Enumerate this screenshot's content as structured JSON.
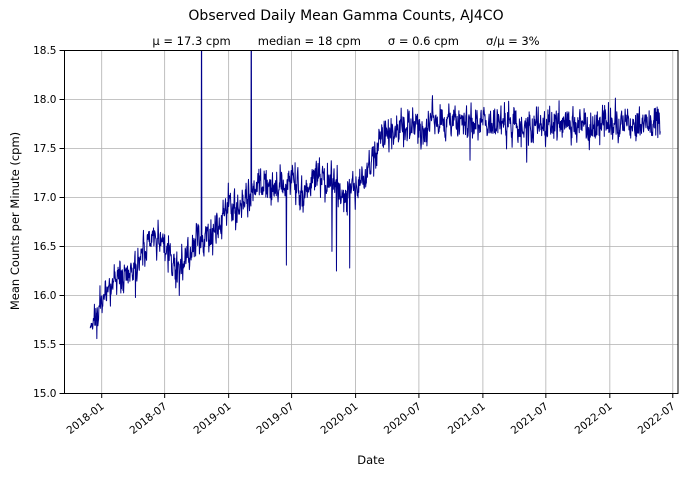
{
  "chart_data": {
    "type": "line",
    "title": "Observed Daily Mean Gamma Counts, AJ4CO",
    "stats": {
      "mu": "μ = 17.3 cpm",
      "median": "median = 18 cpm",
      "sigma": "σ = 0.6 cpm",
      "sigma_over_mu": "σ/μ = 3%"
    },
    "stats_values": {
      "mu_cpm": 17.3,
      "median_cpm": 18,
      "sigma_cpm": 0.6,
      "sigma_over_mu_pct": 3
    },
    "xlabel": "Date",
    "ylabel": "Mean Counts per Minute (cpm)",
    "xlim": [
      "2017-09-16",
      "2022-07-16"
    ],
    "ylim": [
      15.0,
      18.5
    ],
    "xticks": [
      "2018-01",
      "2018-07",
      "2019-01",
      "2019-07",
      "2020-01",
      "2020-07",
      "2021-01",
      "2021-07",
      "2022-01",
      "2022-07"
    ],
    "yticks": [
      15.0,
      15.5,
      16.0,
      16.5,
      17.0,
      17.5,
      18.0,
      18.5
    ],
    "yticklabels": [
      "15.0",
      "15.5",
      "16.0",
      "16.5",
      "17.0",
      "17.5",
      "18.0",
      "18.5"
    ],
    "grid": true,
    "legend": "none",
    "line_color": "#00008b",
    "grid_color": "#b0b0b0",
    "spine_color": "#000000",
    "series": [
      {
        "name": "observed daily mean gamma counts",
        "cadence": "daily",
        "start": "2017-11-29",
        "end": "2022-05-26",
        "noise_sd": 0.095,
        "trend": [
          [
            "2017-11-29",
            15.78
          ],
          [
            "2017-12-20",
            15.8
          ],
          [
            "2018-01-15",
            16.02
          ],
          [
            "2018-02-10",
            16.15
          ],
          [
            "2018-03-10",
            16.2
          ],
          [
            "2018-04-05",
            16.3
          ],
          [
            "2018-05-01",
            16.45
          ],
          [
            "2018-05-25",
            16.55
          ],
          [
            "2018-06-20",
            16.55
          ],
          [
            "2018-07-05",
            16.5
          ],
          [
            "2018-07-25",
            16.32
          ],
          [
            "2018-08-10",
            16.25
          ],
          [
            "2018-09-01",
            16.4
          ],
          [
            "2018-09-25",
            16.5
          ],
          [
            "2018-10-20",
            16.55
          ],
          [
            "2018-11-15",
            16.62
          ],
          [
            "2018-12-10",
            16.8
          ],
          [
            "2019-01-05",
            16.92
          ],
          [
            "2019-01-25",
            16.86
          ],
          [
            "2019-02-15",
            16.98
          ],
          [
            "2019-03-10",
            17.05
          ],
          [
            "2019-04-01",
            17.12
          ],
          [
            "2019-05-01",
            17.15
          ],
          [
            "2019-06-01",
            17.12
          ],
          [
            "2019-07-01",
            17.2
          ],
          [
            "2019-07-25",
            17.05
          ],
          [
            "2019-08-10",
            17.02
          ],
          [
            "2019-09-01",
            17.18
          ],
          [
            "2019-10-01",
            17.2
          ],
          [
            "2019-11-01",
            17.12
          ],
          [
            "2019-11-25",
            17.02
          ],
          [
            "2019-12-20",
            17.1
          ],
          [
            "2020-01-15",
            17.12
          ],
          [
            "2020-02-01",
            17.2
          ],
          [
            "2020-02-15",
            17.35
          ],
          [
            "2020-03-01",
            17.5
          ],
          [
            "2020-03-20",
            17.6
          ],
          [
            "2020-04-15",
            17.65
          ],
          [
            "2020-05-15",
            17.71
          ],
          [
            "2020-06-15",
            17.73
          ],
          [
            "2020-08-01",
            17.75
          ],
          [
            "2020-10-01",
            17.76
          ],
          [
            "2020-12-01",
            17.72
          ],
          [
            "2021-02-01",
            17.75
          ],
          [
            "2021-04-01",
            17.76
          ],
          [
            "2021-06-01",
            17.71
          ],
          [
            "2021-08-01",
            17.75
          ],
          [
            "2021-10-01",
            17.76
          ],
          [
            "2021-12-01",
            17.73
          ],
          [
            "2022-02-01",
            17.76
          ],
          [
            "2022-04-01",
            17.74
          ],
          [
            "2022-05-26",
            17.78
          ]
        ],
        "spikes_up": [
          [
            "2018-10-15",
            19.5
          ],
          [
            "2019-03-07",
            19.5
          ]
        ],
        "spikes_down": [
          [
            "2017-12-18",
            15.56
          ],
          [
            "2018-04-08",
            15.98
          ],
          [
            "2018-08-12",
            16.0
          ],
          [
            "2019-06-16",
            16.31
          ],
          [
            "2019-08-03",
            16.85
          ],
          [
            "2019-10-25",
            16.45
          ],
          [
            "2019-11-07",
            16.25
          ],
          [
            "2019-12-15",
            16.28
          ],
          [
            "2020-11-25",
            17.38
          ],
          [
            "2021-05-07",
            17.36
          ]
        ],
        "note": "up-spikes exceed axis top and are clipped at 18.5"
      }
    ]
  }
}
